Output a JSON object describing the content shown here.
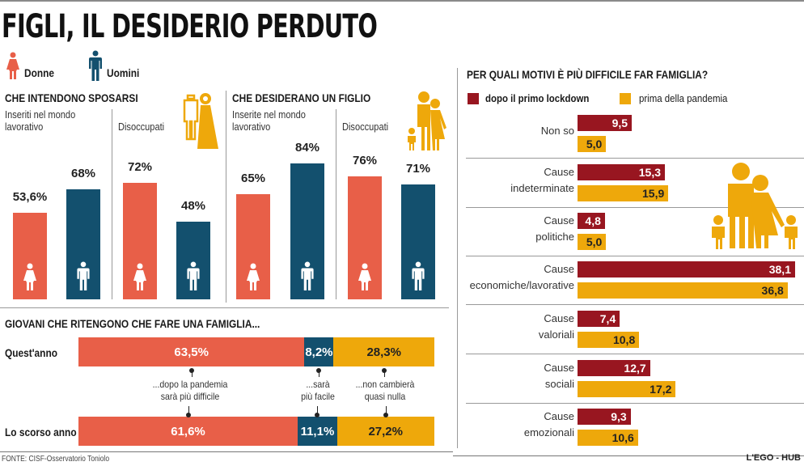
{
  "title": "FIGLI, IL DESIDERIO PERDUTO",
  "colors": {
    "donne": "#e85f48",
    "uomini": "#13506e",
    "gold": "#eea80b",
    "dopo_lockdown": "#981620",
    "prima_pandemia": "#eea80b"
  },
  "legend": {
    "donne": "Donne",
    "uomini": "Uomini"
  },
  "source": "FONTE: CISF-Osservatorio Toniolo",
  "brand": "L'EGO - HUB",
  "chart_data": [
    {
      "type": "bar",
      "title": "CHE INTENDONO SPOSARSI",
      "groups": [
        {
          "label": "Inseriti nel mondo lavorativo",
          "values": [
            {
              "series": "Donne",
              "value": 53.6,
              "label": "53,6%"
            },
            {
              "series": "Uomini",
              "value": 68,
              "label": "68%"
            }
          ]
        },
        {
          "label": "Disoccupati",
          "values": [
            {
              "series": "Donne",
              "value": 72,
              "label": "72%"
            },
            {
              "series": "Uomini",
              "value": 48,
              "label": "48%"
            }
          ]
        }
      ],
      "unit": "%"
    },
    {
      "type": "bar",
      "title": "CHE DESIDERANO UN FIGLIO",
      "groups": [
        {
          "label": "Inserite nel mondo lavorativo",
          "values": [
            {
              "series": "Donne",
              "value": 65,
              "label": "65%"
            },
            {
              "series": "Uomini",
              "value": 84,
              "label": "84%"
            }
          ]
        },
        {
          "label": "Disoccupati",
          "values": [
            {
              "series": "Donne",
              "value": 76,
              "label": "76%"
            },
            {
              "series": "Uomini",
              "value": 71,
              "label": "71%"
            }
          ]
        }
      ],
      "unit": "%"
    },
    {
      "type": "bar",
      "stacked": true,
      "orientation": "horizontal",
      "title": "GIOVANI CHE RITENGONO CHE FARE UNA FAMIGLIA...",
      "categories": [
        "Quest'anno",
        "Lo scorso anno"
      ],
      "series": [
        {
          "name": "...dopo la pandemia sarà più difficile",
          "values": [
            63.5,
            61.6
          ],
          "labels": [
            "63,5%",
            "61,6%"
          ]
        },
        {
          "name": "...sarà più facile",
          "values": [
            8.2,
            11.1
          ],
          "labels": [
            "8,2%",
            "11,1%"
          ]
        },
        {
          "name": "...non cambierà quasi nulla",
          "values": [
            28.3,
            27.2
          ],
          "labels": [
            "28,3%",
            "27,2%"
          ]
        }
      ],
      "annotations": [
        {
          "line1": "...dopo la pandemia",
          "line2": "sarà più difficile"
        },
        {
          "line1": "...sarà",
          "line2": "più facile"
        },
        {
          "line1": "...non cambierà",
          "line2": "quasi nulla"
        }
      ]
    },
    {
      "type": "bar",
      "orientation": "horizontal",
      "title": "PER QUALI MOTIVI È PIÙ DIFFICILE FAR FAMIGLIA?",
      "legend": [
        "dopo il primo lockdown",
        "prima della pandemia"
      ],
      "categories": [
        {
          "line1": "Non so",
          "line2": ""
        },
        {
          "line1": "Cause",
          "line2": "indeterminate"
        },
        {
          "line1": "Cause",
          "line2": "politiche"
        },
        {
          "line1": "Cause",
          "line2": "economiche/lavorative"
        },
        {
          "line1": "Cause",
          "line2": "valoriali"
        },
        {
          "line1": "Cause",
          "line2": "sociali"
        },
        {
          "line1": "Cause",
          "line2": "emozionali"
        }
      ],
      "series": [
        {
          "name": "dopo il primo lockdown",
          "values": [
            9.5,
            15.3,
            4.8,
            38.1,
            7.4,
            12.7,
            9.3
          ],
          "labels": [
            "9,5",
            "15,3",
            "4,8",
            "38,1",
            "7,4",
            "12,7",
            "9,3"
          ]
        },
        {
          "name": "prima della pandemia",
          "values": [
            5.0,
            15.9,
            5.0,
            36.8,
            10.8,
            17.2,
            10.6
          ],
          "labels": [
            "5,0",
            "15,9",
            "5,0",
            "36,8",
            "10,8",
            "17,2",
            "10,6"
          ]
        }
      ]
    }
  ]
}
